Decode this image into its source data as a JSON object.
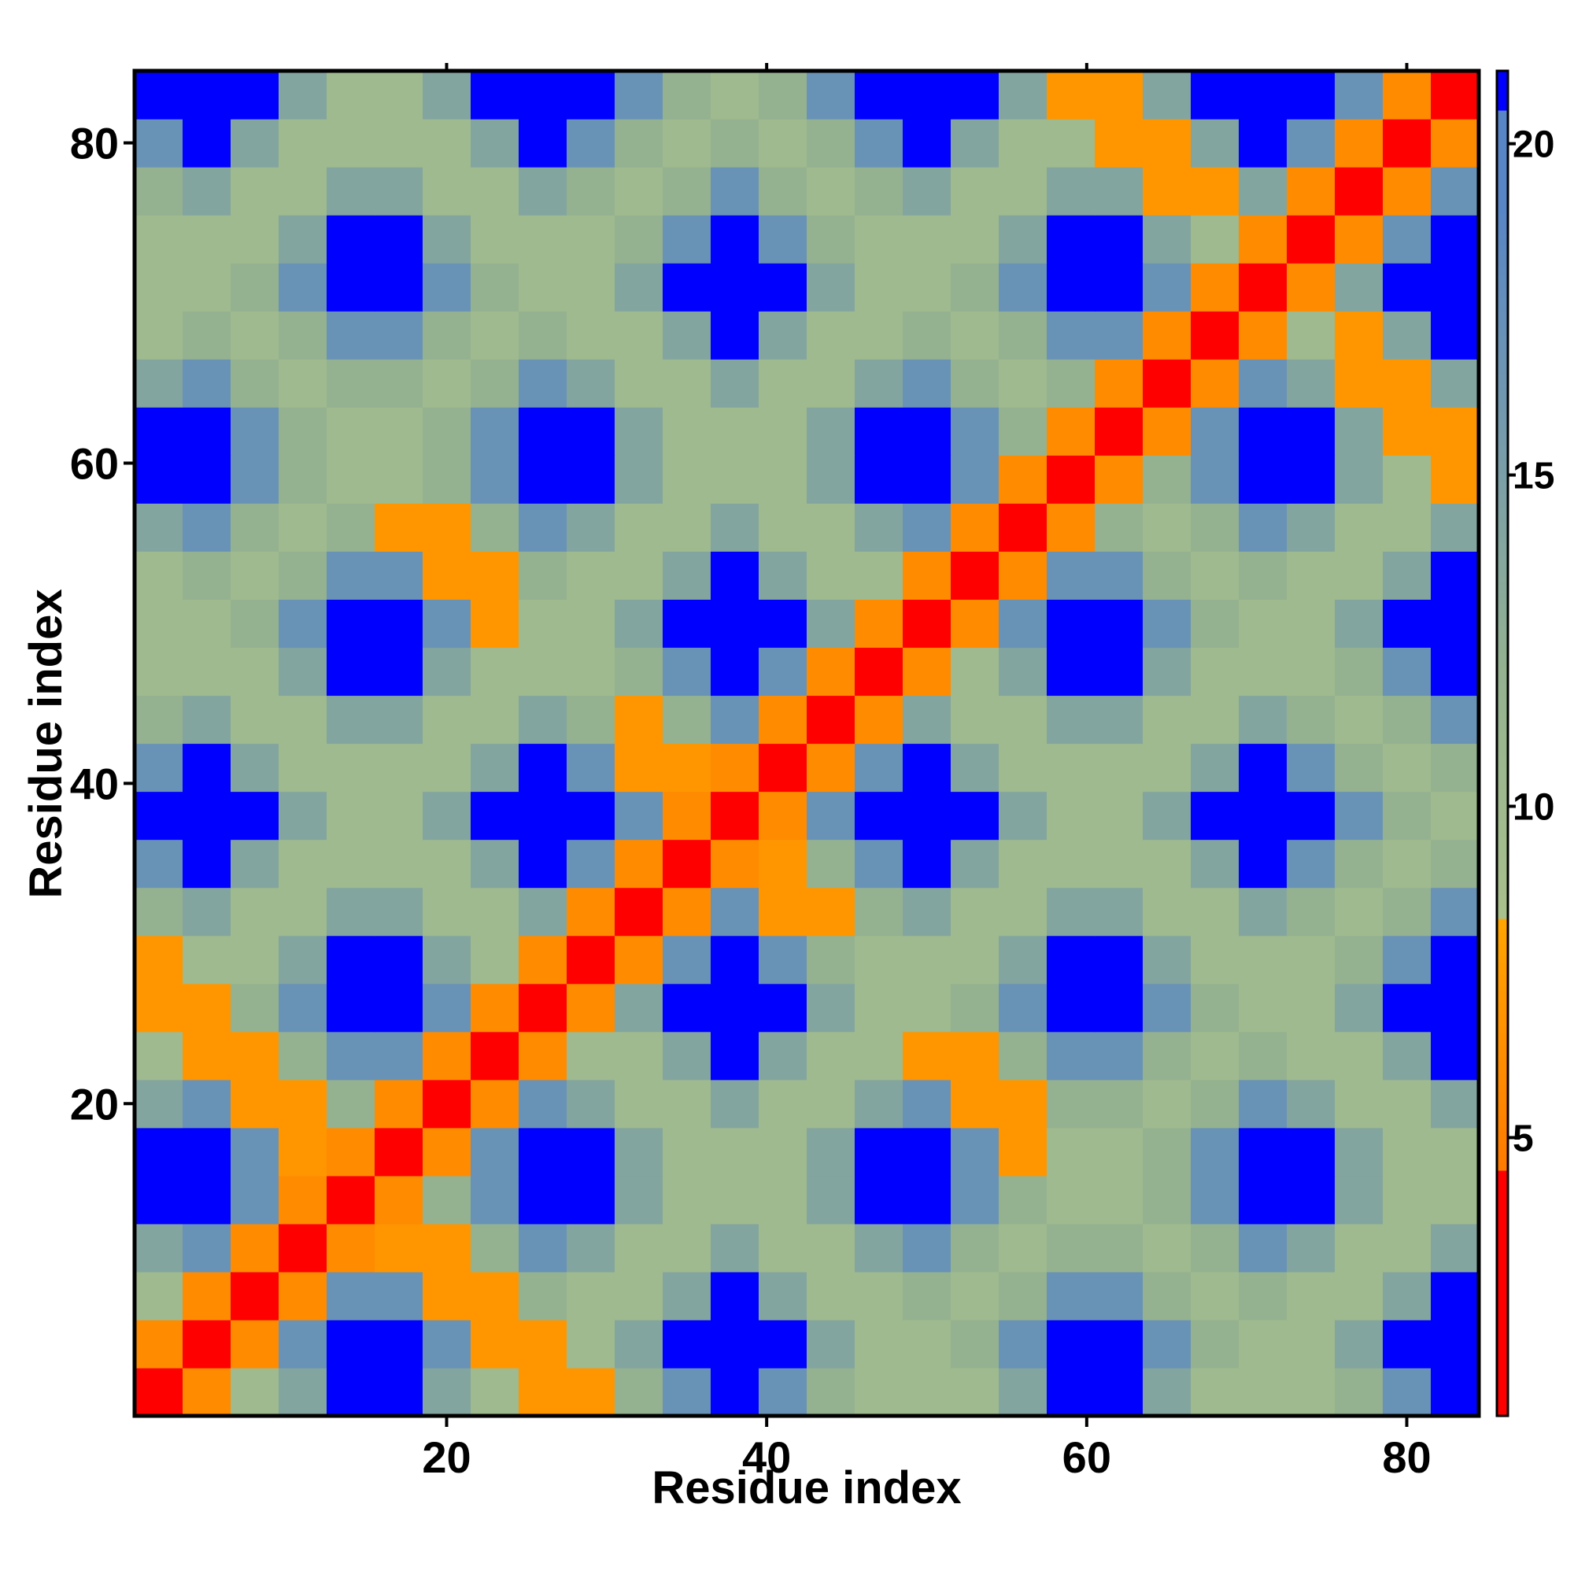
{
  "chart_data": {
    "type": "heatmap",
    "x_label": "Residue index",
    "y_label": "Residue index",
    "x": [
      2,
      5,
      8,
      11,
      14,
      17,
      20,
      23,
      26,
      29,
      32,
      35,
      38,
      41,
      44,
      47,
      50,
      53,
      56,
      59,
      62,
      65,
      68,
      71,
      74,
      77,
      80,
      83
    ],
    "y": [
      2,
      5,
      8,
      11,
      14,
      17,
      20,
      23,
      26,
      29,
      32,
      35,
      38,
      41,
      44,
      47,
      50,
      53,
      56,
      59,
      62,
      65,
      68,
      71,
      74,
      77,
      80,
      83
    ],
    "z": [
      [
        3,
        6,
        10,
        14,
        23,
        23,
        14,
        10,
        7,
        7,
        12,
        17,
        23,
        17,
        12,
        10,
        10,
        10,
        14,
        23,
        23,
        14,
        10,
        10,
        10,
        12,
        17,
        23
      ],
      [
        6,
        3,
        6,
        17,
        23,
        23,
        17,
        7,
        7,
        10,
        14,
        23,
        23,
        23,
        14,
        10,
        10,
        12,
        17,
        23,
        23,
        17,
        12,
        10,
        10,
        14,
        23,
        23
      ],
      [
        10,
        6,
        3,
        6,
        17,
        17,
        7,
        7,
        12,
        10,
        10,
        14,
        23,
        14,
        10,
        10,
        12,
        10,
        12,
        17,
        17,
        12,
        10,
        12,
        10,
        10,
        14,
        23
      ],
      [
        14,
        17,
        6,
        3,
        6,
        7,
        7,
        12,
        17,
        14,
        10,
        10,
        14,
        10,
        10,
        14,
        17,
        12,
        10,
        12,
        12,
        10,
        12,
        17,
        14,
        10,
        10,
        14
      ],
      [
        23,
        23,
        17,
        6,
        3,
        6,
        12,
        17,
        23,
        23,
        14,
        10,
        10,
        10,
        14,
        23,
        23,
        17,
        12,
        10,
        10,
        12,
        17,
        23,
        23,
        14,
        10,
        10
      ],
      [
        23,
        23,
        17,
        7,
        6,
        3,
        6,
        17,
        23,
        23,
        14,
        10,
        10,
        10,
        14,
        23,
        23,
        17,
        7,
        10,
        10,
        12,
        17,
        23,
        23,
        14,
        10,
        10
      ],
      [
        14,
        17,
        7,
        7,
        12,
        6,
        3,
        6,
        17,
        14,
        10,
        10,
        14,
        10,
        10,
        14,
        17,
        7,
        7,
        12,
        12,
        10,
        12,
        17,
        14,
        10,
        10,
        14
      ],
      [
        10,
        7,
        7,
        12,
        17,
        17,
        6,
        3,
        6,
        10,
        10,
        14,
        23,
        14,
        10,
        10,
        7,
        7,
        12,
        17,
        17,
        12,
        10,
        12,
        10,
        10,
        14,
        23
      ],
      [
        7,
        7,
        12,
        17,
        23,
        23,
        17,
        6,
        3,
        6,
        14,
        23,
        23,
        23,
        14,
        10,
        10,
        12,
        17,
        23,
        23,
        17,
        12,
        10,
        10,
        14,
        23,
        23
      ],
      [
        7,
        10,
        10,
        14,
        23,
        23,
        14,
        10,
        6,
        3,
        6,
        17,
        23,
        17,
        12,
        10,
        10,
        10,
        14,
        23,
        23,
        14,
        10,
        10,
        10,
        12,
        17,
        23
      ],
      [
        12,
        14,
        10,
        10,
        14,
        14,
        10,
        10,
        14,
        6,
        3,
        6,
        17,
        7,
        7,
        12,
        14,
        10,
        10,
        14,
        14,
        10,
        10,
        14,
        12,
        10,
        12,
        17
      ],
      [
        17,
        23,
        14,
        10,
        10,
        10,
        10,
        14,
        23,
        17,
        6,
        3,
        6,
        7,
        12,
        17,
        23,
        14,
        10,
        10,
        10,
        10,
        14,
        23,
        17,
        12,
        10,
        12
      ],
      [
        23,
        23,
        23,
        14,
        10,
        10,
        14,
        23,
        23,
        23,
        17,
        6,
        3,
        6,
        17,
        23,
        23,
        23,
        14,
        10,
        10,
        14,
        23,
        23,
        23,
        17,
        12,
        10
      ],
      [
        17,
        23,
        14,
        10,
        10,
        10,
        10,
        14,
        23,
        17,
        7,
        7,
        6,
        3,
        6,
        17,
        23,
        14,
        10,
        10,
        10,
        10,
        14,
        23,
        17,
        12,
        10,
        12
      ],
      [
        12,
        14,
        10,
        10,
        14,
        14,
        10,
        10,
        14,
        12,
        7,
        12,
        17,
        6,
        3,
        6,
        14,
        10,
        10,
        14,
        14,
        10,
        10,
        14,
        12,
        10,
        12,
        17
      ],
      [
        10,
        10,
        10,
        14,
        23,
        23,
        14,
        10,
        10,
        10,
        12,
        17,
        23,
        17,
        6,
        3,
        6,
        10,
        14,
        23,
        23,
        14,
        10,
        10,
        10,
        12,
        17,
        23
      ],
      [
        10,
        10,
        12,
        17,
        23,
        23,
        17,
        7,
        10,
        10,
        14,
        23,
        23,
        23,
        14,
        6,
        3,
        6,
        17,
        23,
        23,
        17,
        12,
        10,
        10,
        14,
        23,
        23
      ],
      [
        10,
        12,
        10,
        12,
        17,
        17,
        7,
        7,
        12,
        10,
        10,
        14,
        23,
        14,
        10,
        10,
        6,
        3,
        6,
        17,
        17,
        12,
        10,
        12,
        10,
        10,
        14,
        23
      ],
      [
        14,
        17,
        12,
        10,
        12,
        7,
        7,
        12,
        17,
        14,
        10,
        10,
        14,
        10,
        10,
        14,
        17,
        6,
        3,
        6,
        12,
        10,
        12,
        17,
        14,
        10,
        10,
        14
      ],
      [
        23,
        23,
        17,
        12,
        10,
        10,
        12,
        17,
        23,
        23,
        14,
        10,
        10,
        10,
        14,
        23,
        23,
        17,
        6,
        3,
        6,
        12,
        17,
        23,
        23,
        14,
        10,
        7
      ],
      [
        23,
        23,
        17,
        12,
        10,
        10,
        12,
        17,
        23,
        23,
        14,
        10,
        10,
        10,
        14,
        23,
        23,
        17,
        12,
        6,
        3,
        6,
        17,
        23,
        23,
        14,
        7,
        7
      ],
      [
        14,
        17,
        12,
        10,
        12,
        12,
        10,
        12,
        17,
        14,
        10,
        10,
        14,
        10,
        10,
        14,
        17,
        12,
        10,
        12,
        6,
        3,
        6,
        17,
        14,
        7,
        7,
        14
      ],
      [
        10,
        12,
        10,
        12,
        17,
        17,
        12,
        10,
        12,
        10,
        10,
        14,
        23,
        14,
        10,
        10,
        12,
        10,
        12,
        17,
        17,
        6,
        3,
        6,
        10,
        7,
        14,
        23
      ],
      [
        10,
        10,
        12,
        17,
        23,
        23,
        17,
        12,
        10,
        10,
        14,
        23,
        23,
        23,
        14,
        10,
        10,
        12,
        17,
        23,
        23,
        17,
        6,
        3,
        6,
        14,
        23,
        23
      ],
      [
        10,
        10,
        10,
        14,
        23,
        23,
        14,
        10,
        10,
        10,
        12,
        17,
        23,
        17,
        12,
        10,
        10,
        10,
        14,
        23,
        23,
        14,
        10,
        6,
        3,
        6,
        17,
        23
      ],
      [
        12,
        14,
        10,
        10,
        14,
        14,
        10,
        10,
        14,
        12,
        10,
        12,
        17,
        12,
        10,
        12,
        14,
        10,
        10,
        14,
        14,
        7,
        7,
        14,
        6,
        3,
        6,
        17
      ],
      [
        17,
        23,
        14,
        10,
        10,
        10,
        10,
        14,
        23,
        17,
        12,
        10,
        12,
        10,
        12,
        17,
        23,
        14,
        10,
        10,
        7,
        7,
        14,
        23,
        17,
        6,
        3,
        6
      ],
      [
        23,
        23,
        23,
        14,
        10,
        10,
        14,
        23,
        23,
        23,
        17,
        12,
        10,
        12,
        17,
        23,
        23,
        23,
        14,
        7,
        7,
        14,
        23,
        23,
        23,
        17,
        6,
        3
      ]
    ],
    "xlim": [
      0.5,
      84.5
    ],
    "ylim": [
      0.5,
      84.5
    ],
    "xticks": [
      20,
      40,
      60,
      80
    ],
    "yticks": [
      20,
      40,
      60,
      80
    ],
    "colorbar": {
      "lim": [
        0.8,
        21.1
      ],
      "ticks": [
        5,
        10,
        15,
        20
      ]
    },
    "colorscale": [
      {
        "value": 0.8,
        "color": "#ff0000"
      },
      {
        "value": 4.5,
        "color": "#ff0000"
      },
      {
        "value": 4.5,
        "color": "#ff7a00"
      },
      {
        "value": 8.3,
        "color": "#ffa500"
      },
      {
        "value": 8.3,
        "color": "#a9c08c"
      },
      {
        "value": 12,
        "color": "#94b290"
      },
      {
        "value": 19,
        "color": "#5885c6"
      },
      {
        "value": 20.5,
        "color": "#5885c6"
      },
      {
        "value": 20.5,
        "color": "#0000ff"
      }
    ]
  }
}
